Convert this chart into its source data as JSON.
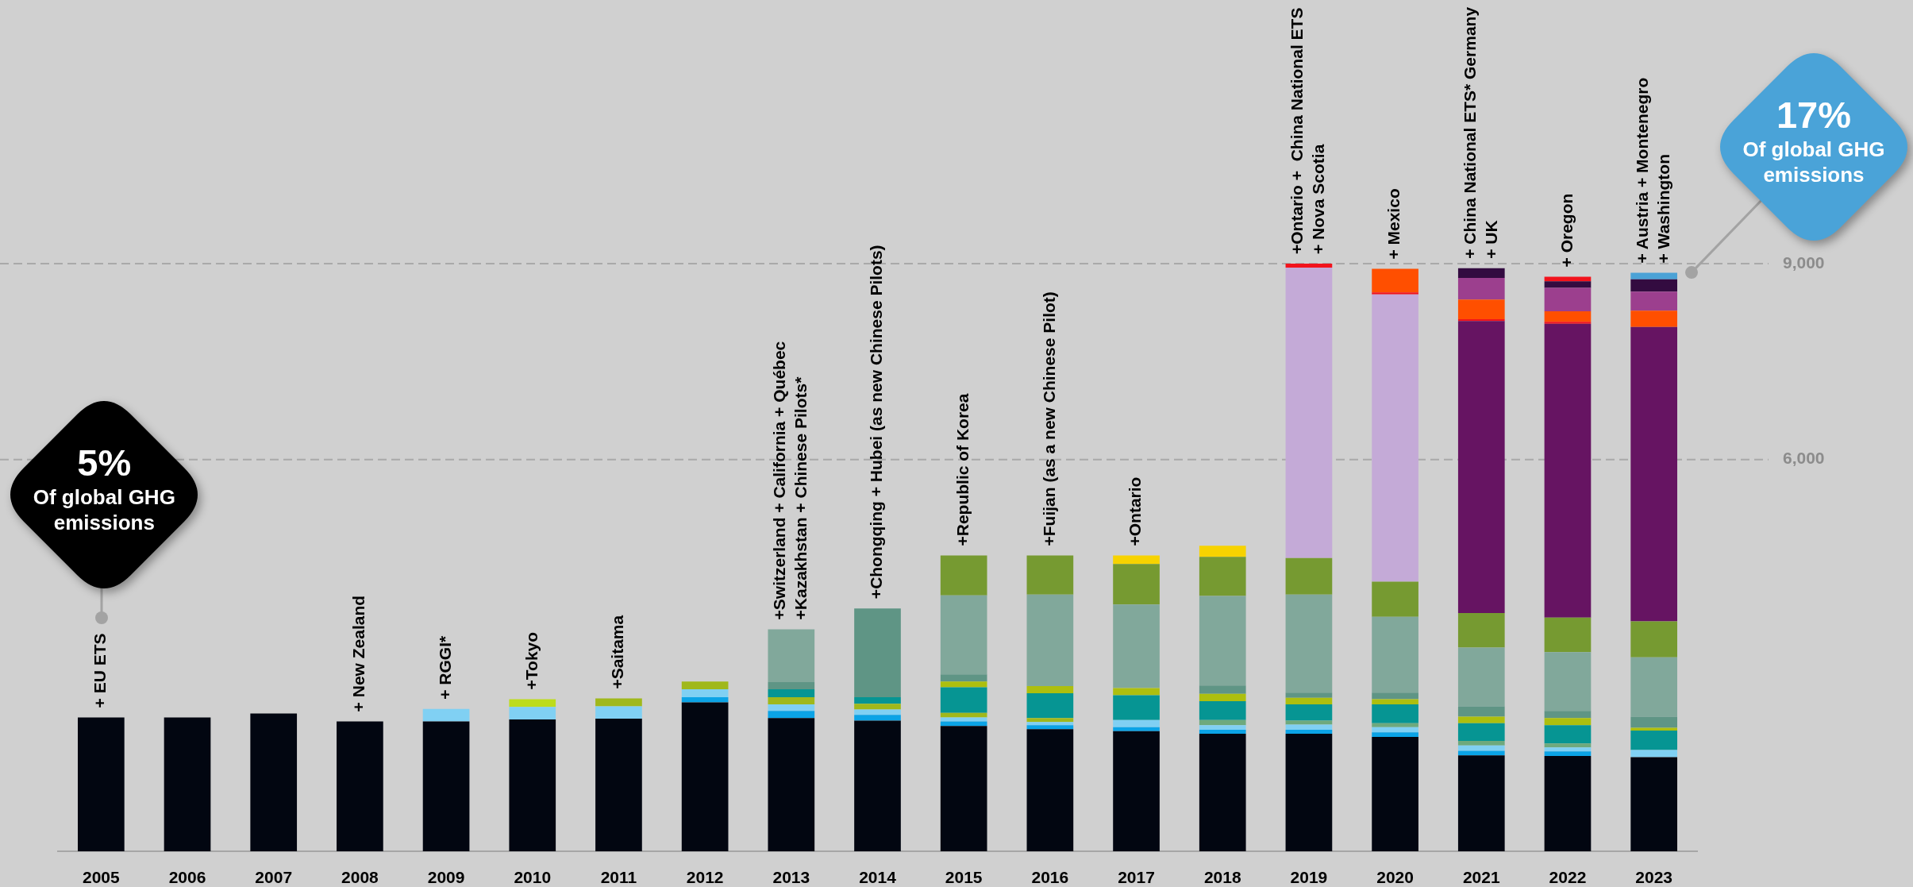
{
  "chart_data": {
    "type": "bar",
    "stacked": true,
    "categories": [
      "2005",
      "2006",
      "2007",
      "2008",
      "2009",
      "2010",
      "2011",
      "2012",
      "2013",
      "2014",
      "2015",
      "2016",
      "2017",
      "2018",
      "2019",
      "2020",
      "2021",
      "2022",
      "2023"
    ],
    "series": [
      {
        "color": "#020611",
        "values": [
          2050,
          2050,
          2110,
          1990,
          1990,
          2020,
          2030,
          2280,
          2040,
          2000,
          1920,
          1870,
          1840,
          1800,
          1800,
          1750,
          1470,
          1460,
          1440
        ]
      },
      {
        "color": "#0ba3e6",
        "values": [
          null,
          null,
          null,
          null,
          null,
          null,
          null,
          80,
          110,
          90,
          70,
          60,
          60,
          60,
          60,
          70,
          70,
          70,
          null
        ]
      },
      {
        "color": "#80d0f3",
        "values": [
          null,
          null,
          null,
          null,
          190,
          190,
          190,
          120,
          100,
          80,
          60,
          50,
          110,
          70,
          80,
          80,
          80,
          60,
          110
        ]
      },
      {
        "color": "#bddc1c",
        "values": [
          null,
          null,
          null,
          null,
          null,
          120,
          null,
          null,
          null,
          null,
          null,
          null,
          null,
          null,
          null,
          null,
          null,
          null,
          null
        ]
      },
      {
        "color": "#a0b81b",
        "values": [
          null,
          null,
          null,
          null,
          null,
          null,
          120,
          120,
          110,
          90,
          70,
          60,
          null,
          null,
          null,
          null,
          null,
          null,
          null
        ]
      },
      {
        "color": "#6ea97d",
        "values": [
          null,
          null,
          null,
          null,
          null,
          null,
          null,
          null,
          null,
          null,
          null,
          null,
          null,
          80,
          60,
          60,
          70,
          60,
          null
        ]
      },
      {
        "color": "#069593",
        "values": [
          null,
          null,
          null,
          null,
          null,
          null,
          null,
          null,
          120,
          100,
          390,
          380,
          380,
          290,
          250,
          290,
          270,
          280,
          300
        ]
      },
      {
        "color": "#adbf0e",
        "values": [
          null,
          null,
          null,
          null,
          null,
          null,
          null,
          null,
          null,
          null,
          90,
          110,
          110,
          110,
          100,
          80,
          100,
          110,
          40
        ]
      },
      {
        "color": "#5f9585",
        "values": [
          null,
          null,
          null,
          null,
          null,
          null,
          null,
          null,
          110,
          1360,
          110,
          null,
          null,
          130,
          80,
          100,
          160,
          110,
          170
        ]
      },
      {
        "color": "#81a89b",
        "values": [
          null,
          null,
          null,
          null,
          null,
          null,
          null,
          null,
          810,
          null,
          1210,
          1400,
          1280,
          1370,
          1500,
          1160,
          900,
          900,
          910
        ]
      },
      {
        "color": "#769a31",
        "values": [
          null,
          null,
          null,
          null,
          null,
          null,
          null,
          null,
          null,
          null,
          610,
          600,
          620,
          600,
          560,
          540,
          530,
          530,
          550
        ]
      },
      {
        "color": "#f7d300",
        "values": [
          null,
          null,
          null,
          null,
          null,
          null,
          null,
          null,
          null,
          null,
          null,
          null,
          130,
          170,
          null,
          null,
          null,
          null,
          null
        ]
      },
      {
        "color": "#c4aad7",
        "values": [
          null,
          null,
          null,
          null,
          null,
          null,
          null,
          null,
          null,
          null,
          null,
          null,
          null,
          null,
          4450,
          4400,
          null,
          null,
          null
        ]
      },
      {
        "color": "#661462",
        "values": [
          null,
          null,
          null,
          null,
          null,
          null,
          null,
          null,
          null,
          null,
          null,
          null,
          null,
          null,
          null,
          null,
          4470,
          4500,
          4510
        ]
      },
      {
        "color": "#f2131c",
        "values": [
          null,
          null,
          null,
          null,
          null,
          null,
          null,
          null,
          null,
          null,
          null,
          null,
          null,
          null,
          60,
          30,
          30,
          30,
          null
        ]
      },
      {
        "color": "#ff4f00",
        "values": [
          null,
          null,
          null,
          null,
          null,
          null,
          null,
          null,
          null,
          null,
          null,
          null,
          null,
          null,
          null,
          360,
          300,
          160,
          250
        ]
      },
      {
        "color": "#9c3f8e",
        "values": [
          null,
          null,
          null,
          null,
          null,
          null,
          null,
          null,
          null,
          null,
          null,
          null,
          null,
          null,
          null,
          null,
          330,
          360,
          290
        ]
      },
      {
        "color": "#330b40",
        "values": [
          null,
          null,
          null,
          null,
          null,
          null,
          null,
          null,
          null,
          null,
          null,
          null,
          null,
          null,
          null,
          null,
          150,
          100,
          190
        ]
      },
      {
        "color": "#f2131c",
        "values": [
          null,
          null,
          null,
          null,
          null,
          null,
          null,
          null,
          null,
          null,
          null,
          null,
          null,
          null,
          null,
          null,
          null,
          70,
          null
        ]
      },
      {
        "color": "#4ba2d6",
        "values": [
          null,
          null,
          null,
          null,
          null,
          null,
          null,
          null,
          null,
          null,
          null,
          null,
          null,
          null,
          null,
          null,
          null,
          null,
          100
        ]
      }
    ],
    "ylim": [
      0,
      9000
    ],
    "yticks": [
      {
        "value": 6000,
        "label": "6,000"
      },
      {
        "value": 9000,
        "label": "9,000"
      }
    ],
    "grid": "y",
    "annotations": [
      "5%\nOf global GHG emissions",
      "17%\nOf global GHG emissions",
      {
        "text": "+ EU ETS",
        "x": "2005",
        "y": 2050
      },
      {
        "text": "+ New Zealand",
        "x": "2008",
        "y": 1990
      },
      {
        "text": "+ RGGI*",
        "x": "2009",
        "y": 2180
      },
      {
        "text": "+Tokyo",
        "x": "2010",
        "y": 2330
      },
      {
        "text": "+Saitama",
        "x": "2011",
        "y": 2340
      },
      {
        "text": "+Switzerland + California + Québec\n+Kazakhstan + Chinese Pilots*",
        "x": "2013",
        "y": 3400
      },
      {
        "text": "+Chongqing + Hubei (as new Chinese Pilots)",
        "x": "2014",
        "y": 3720
      },
      {
        "text": "+Republic of Korea",
        "x": "2015",
        "y": 4530
      },
      {
        "text": "+Fuijan (as a new Chinese Pilot)",
        "x": "2016",
        "y": 4530
      },
      {
        "text": "+Ontario",
        "x": "2017",
        "y": 4530
      },
      {
        "text": "+Ontario +  China National ETS\n+ Nova Scotia",
        "x": "2019",
        "y": 9000
      },
      {
        "text": "+ Mexico",
        "x": "2020",
        "y": 8920
      },
      {
        "text": "+ China National ETS* Germany\n+ UK",
        "x": "2021",
        "y": 8930
      },
      {
        "text": "+ Oregon",
        "x": "2022",
        "y": 8800
      },
      {
        "text": "+ Austria + Montenegro\n+ Washington",
        "x": "2023",
        "y": 8860
      }
    ]
  }
}
